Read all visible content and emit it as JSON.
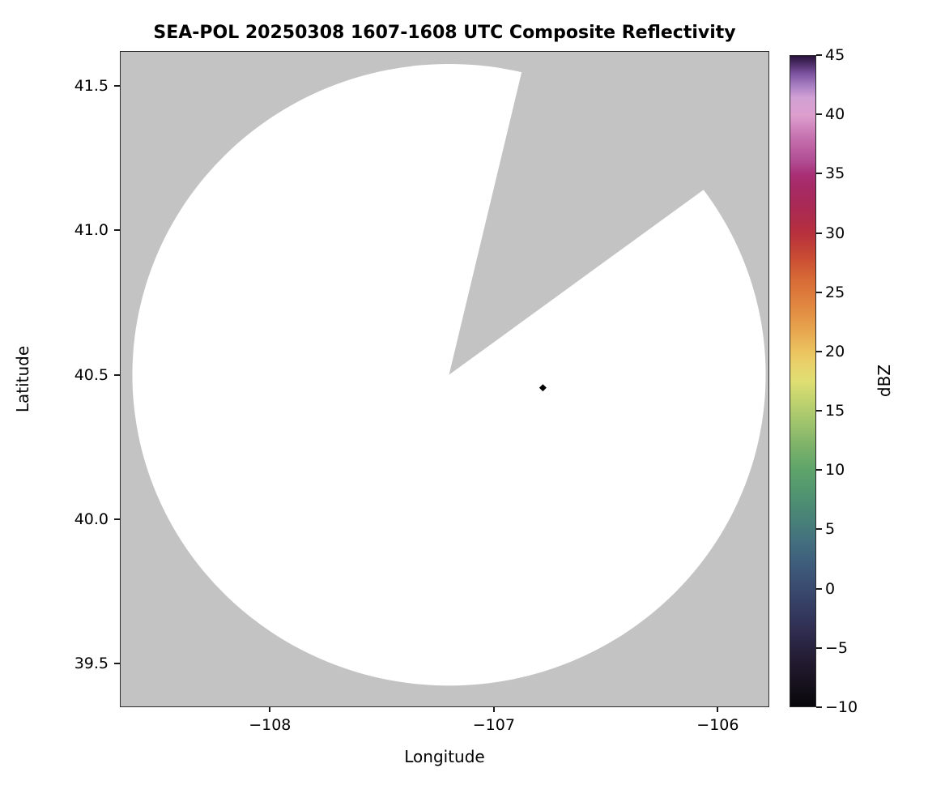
{
  "plot": {
    "title": "SEA-POL 20250308 1607-1608 UTC Composite Reflectivity",
    "xlabel": "Longitude",
    "ylabel": "Latitude",
    "xticks": {
      "values": [
        -108,
        -107,
        -106
      ],
      "labels": [
        "−108",
        "−107",
        "−106"
      ]
    },
    "yticks": {
      "values": [
        39.5,
        40.0,
        40.5,
        41.0,
        41.5
      ],
      "labels": [
        "39.5",
        "40.0",
        "40.5",
        "41.0",
        "41.5"
      ]
    },
    "colorbar": {
      "label": "dBZ",
      "min": -10,
      "max": 45,
      "ticks": {
        "values": [
          45,
          40,
          35,
          30,
          25,
          20,
          15,
          10,
          5,
          0,
          -5,
          -10
        ],
        "labels": [
          "45",
          "40",
          "35",
          "30",
          "25",
          "20",
          "15",
          "10",
          "5",
          "0",
          "−5",
          "−10"
        ]
      },
      "stops": [
        [
          -10,
          "#08080a"
        ],
        [
          -8,
          "#17121f"
        ],
        [
          -6,
          "#231c33"
        ],
        [
          -4,
          "#2e2a4c"
        ],
        [
          -2,
          "#343a60"
        ],
        [
          0,
          "#3a4b70"
        ],
        [
          2,
          "#3e5c7b"
        ],
        [
          4,
          "#43707e"
        ],
        [
          6,
          "#488377"
        ],
        [
          8,
          "#519470"
        ],
        [
          10,
          "#5ea46a"
        ],
        [
          12,
          "#7db26a"
        ],
        [
          14,
          "#a0c46c"
        ],
        [
          16,
          "#c3d46f"
        ],
        [
          17.5,
          "#dfdf73"
        ],
        [
          19,
          "#e9d169"
        ],
        [
          20,
          "#ebc35e"
        ],
        [
          22,
          "#e7a24d"
        ],
        [
          24,
          "#e0853f"
        ],
        [
          26,
          "#d86c37"
        ],
        [
          28,
          "#c94b33"
        ],
        [
          30,
          "#b7303d"
        ],
        [
          32,
          "#aa2a52"
        ],
        [
          34,
          "#a62a66"
        ],
        [
          35,
          "#a83076"
        ],
        [
          36,
          "#b04b92"
        ],
        [
          38,
          "#c56fae"
        ],
        [
          40,
          "#dd9fce"
        ],
        [
          41.5,
          "#d0a0d4"
        ],
        [
          42.5,
          "#a87ec3"
        ],
        [
          43.5,
          "#7c539f"
        ],
        [
          44.5,
          "#43265c"
        ],
        [
          45,
          "#2a123b"
        ]
      ]
    }
  },
  "chart_data": {
    "type": "heatmap",
    "title": "SEA-POL 20250308 1607-1608 UTC Composite Reflectivity",
    "xlabel": "Longitude",
    "ylabel": "Latitude",
    "xlim": [
      -108.67,
      -105.77
    ],
    "ylim": [
      39.35,
      41.62
    ],
    "xticks": [
      -108,
      -107,
      -106
    ],
    "yticks": [
      39.5,
      40.0,
      40.5,
      41.0,
      41.5
    ],
    "colorbar_label": "dBZ",
    "colorbar_range": [
      -10,
      45
    ],
    "colorbar_tick_step": 5,
    "grid": false,
    "legend": false,
    "radar": {
      "center_lon": -107.2,
      "center_lat": 40.5,
      "range_km": 120,
      "masked_sector_azimuths_deg_from_north": [
        13.5,
        54
      ],
      "coverage_region": "white (no reflectivity above minimum displayed)",
      "outside_coverage": "gray (no data)"
    },
    "markers": [
      {
        "shape": "diamond",
        "color": "#000000",
        "lon": -106.78,
        "lat": 40.455,
        "name": "site-marker"
      }
    ],
    "colors": {
      "no_data_gray": "#c3c3c3",
      "coverage_white": "#ffffff"
    }
  }
}
